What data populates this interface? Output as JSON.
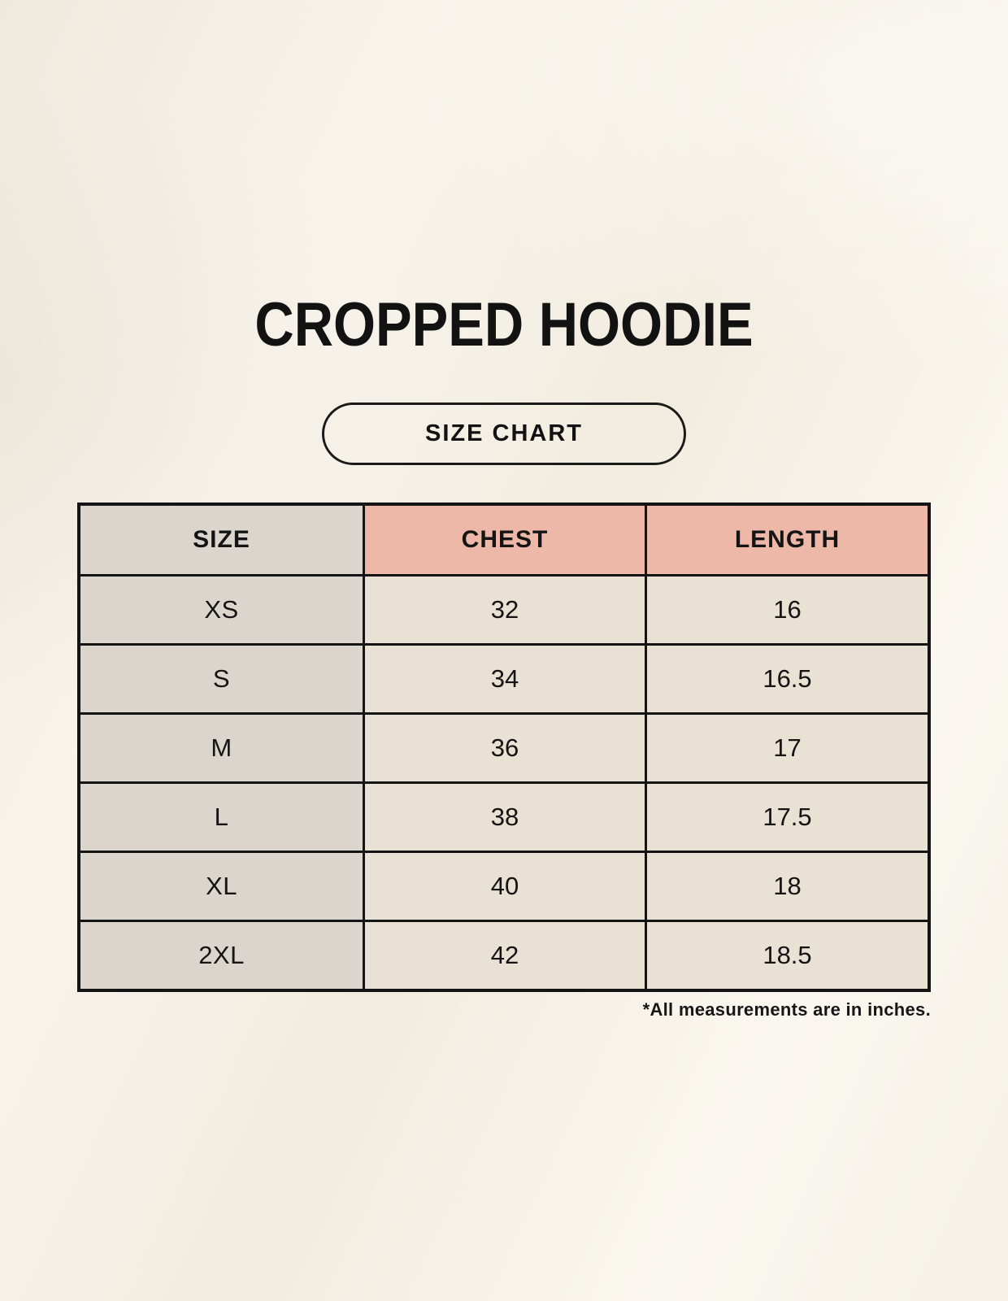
{
  "page": {
    "title": "CROPPED HOODIE",
    "size_chart_button": "SIZE CHART",
    "footnote": "*All measurements are in inches."
  },
  "chart_data": {
    "type": "table",
    "title": "CROPPED HOODIE",
    "subtitle": "SIZE CHART",
    "columns": [
      "SIZE",
      "CHEST",
      "LENGTH"
    ],
    "rows": [
      [
        "XS",
        32,
        16
      ],
      [
        "S",
        34,
        16.5
      ],
      [
        "M",
        36,
        17
      ],
      [
        "L",
        38,
        17.5
      ],
      [
        "XL",
        40,
        18
      ],
      [
        "2XL",
        42,
        18.5
      ]
    ],
    "units": "inches",
    "note": "*All measurements are in inches."
  },
  "table": {
    "headers": [
      "SIZE",
      "CHEST",
      "LENGTH"
    ],
    "rows": [
      {
        "size": "XS",
        "chest": "32",
        "length": "16"
      },
      {
        "size": "S",
        "chest": "34",
        "length": "16.5"
      },
      {
        "size": "M",
        "chest": "36",
        "length": "17"
      },
      {
        "size": "L",
        "chest": "38",
        "length": "17.5"
      },
      {
        "size": "XL",
        "chest": "40",
        "length": "18"
      },
      {
        "size": "2XL",
        "chest": "42",
        "length": "18.5"
      }
    ]
  },
  "colors": {
    "background": "#f6f1e8",
    "header_pink": "#eeb8a8",
    "cell_gray": "#dcd5ce",
    "cell_cream": "#e8e1d4",
    "border": "#141414",
    "text": "#121212"
  }
}
